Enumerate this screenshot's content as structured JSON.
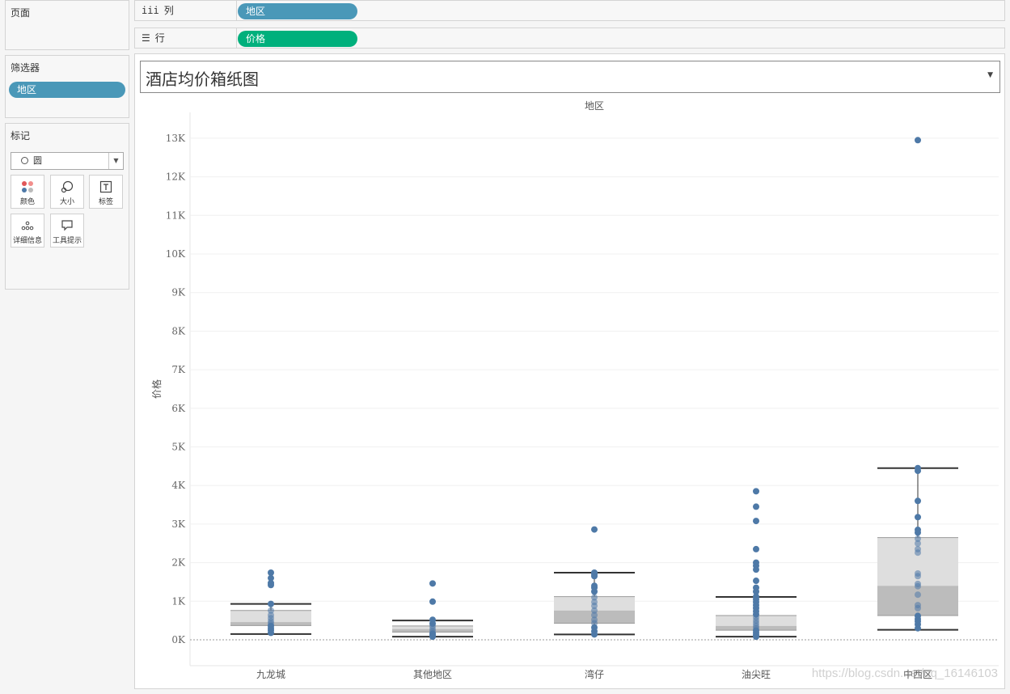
{
  "pages_panel": {
    "title": "页面"
  },
  "columns_shelf": {
    "label": "列",
    "pill": "地区"
  },
  "rows_shelf": {
    "label": "行",
    "pill": "价格"
  },
  "filters_panel": {
    "title": "筛选器",
    "pill": "地区"
  },
  "marks_panel": {
    "title": "标记",
    "mark_type": "圆",
    "buttons": [
      {
        "label": "颜色",
        "icon": "color-dots-icon"
      },
      {
        "label": "大小",
        "icon": "size-bubble-icon"
      },
      {
        "label": "标签",
        "icon": "text-label-icon"
      },
      {
        "label": "详细信息",
        "icon": "detail-dots-icon"
      },
      {
        "label": "工具提示",
        "icon": "tooltip-bubble-icon"
      }
    ]
  },
  "sheet": {
    "title": "酒店均价箱纸图"
  },
  "watermark": "https://blog.csdn.net/qq_16146103",
  "colors": {
    "point": "#4e79a7",
    "box_upper": "#dedede",
    "box_lower": "#bcbcbc",
    "whisker": "#333333",
    "pill_blue": "#4a98b8",
    "pill_green": "#00b07c"
  },
  "chart_data": {
    "type": "scatter",
    "title": "",
    "xlabel": "地区",
    "ylabel": "价格",
    "ylim": [
      -700,
      13700
    ],
    "yticks": [
      0,
      1000,
      2000,
      3000,
      4000,
      5000,
      6000,
      7000,
      8000,
      9000,
      10000,
      11000,
      12000,
      13000
    ],
    "ytick_labels": [
      "0K",
      "1K",
      "2K",
      "3K",
      "4K",
      "5K",
      "6K",
      "7K",
      "8K",
      "9K",
      "10K",
      "11K",
      "12K",
      "13K"
    ],
    "grid": true,
    "categories": [
      "九龙城",
      "其他地区",
      "湾仔",
      "油尖旺",
      "中西区"
    ],
    "boxes": [
      {
        "min": 150,
        "q1": 370,
        "median": 460,
        "q3": 760,
        "max": 930
      },
      {
        "min": 80,
        "q1": 200,
        "median": 280,
        "q3": 360,
        "max": 500
      },
      {
        "min": 140,
        "q1": 430,
        "median": 760,
        "q3": 1120,
        "max": 1740
      },
      {
        "min": 80,
        "q1": 250,
        "median": 360,
        "q3": 630,
        "max": 1110
      },
      {
        "min": 260,
        "q1": 630,
        "median": 1400,
        "q3": 2650,
        "max": 4450
      }
    ],
    "points": [
      [
        1740,
        1600,
        1470,
        1420,
        930,
        760,
        640,
        560,
        480,
        420,
        360,
        300,
        250,
        180
      ],
      [
        1460,
        990,
        520,
        420,
        350,
        280,
        220,
        160,
        120,
        80
      ],
      [
        2860,
        1740,
        1700,
        1650,
        1400,
        1350,
        1250,
        1100,
        980,
        880,
        760,
        640,
        520,
        430,
        320,
        220,
        140
      ],
      [
        3850,
        3450,
        3080,
        2350,
        2000,
        1920,
        1820,
        1530,
        1350,
        1250,
        1120,
        1050,
        980,
        900,
        820,
        740,
        660,
        580,
        500,
        430,
        360,
        300,
        240,
        180,
        120,
        80
      ],
      [
        12950,
        4450,
        4380,
        3600,
        3180,
        2850,
        2780,
        2620,
        2500,
        2350,
        2260,
        1720,
        1650,
        1450,
        1390,
        1170,
        900,
        820,
        620,
        540,
        480,
        400,
        300
      ]
    ]
  }
}
